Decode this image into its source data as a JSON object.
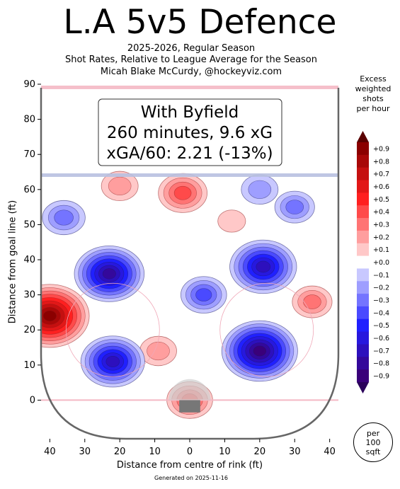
{
  "header": {
    "title": "L.A 5v5 Defence",
    "subtitle_lines": [
      "2025-2026, Regular Season",
      "Shot Rates, Relative to League Average for the Season",
      "Micah Blake McCurdy, @hockeyviz.com"
    ]
  },
  "annotation_box": {
    "lines": [
      "With Byfield",
      "260 minutes, 9.6 xG",
      "xGA/60: 2.21 (-13%)"
    ]
  },
  "legend": {
    "title_lines": [
      "Excess",
      "weighted",
      "shots",
      "per hour"
    ],
    "unit_lines": [
      "per",
      "100",
      "sqft"
    ]
  },
  "footer": {
    "generated": "Generated on 2025-11-16"
  },
  "colors": {
    "positive_max": "#8b0000",
    "positive_mid": "#ff2020",
    "positive_min": "#ffc8c8",
    "neutral": "#ffffff",
    "negative_min": "#c8c8ff",
    "negative_mid": "#2020ff",
    "negative_max": "#3a007a",
    "rink_border": "#666666",
    "goal_line": "#f4b8c4",
    "blue_line": "#b8c0e0"
  },
  "chart_data": {
    "type": "heatmap",
    "xlabel": "Distance from centre of rink (ft)",
    "ylabel": "Distance from goal line (ft)",
    "xlim": [
      -42.5,
      42.5
    ],
    "ylim": [
      -11,
      90
    ],
    "x_ticks": [
      40,
      30,
      20,
      10,
      0,
      10,
      20,
      30,
      40
    ],
    "x_tick_values": [
      -40,
      -30,
      -20,
      -10,
      0,
      10,
      20,
      30,
      40
    ],
    "y_ticks": [
      0,
      10,
      20,
      30,
      40,
      50,
      60,
      70,
      80,
      90
    ],
    "blue_line_y": 64,
    "goal_line_y": 0,
    "colorbar": {
      "labels": [
        "+0.9",
        "+0.8",
        "+0.7",
        "+0.6",
        "+0.5",
        "+0.4",
        "+0.3",
        "+0.2",
        "+0.1",
        "+0.0",
        "−0.1",
        "−0.2",
        "−0.3",
        "−0.4",
        "−0.5",
        "−0.6",
        "−0.7",
        "−0.8",
        "−0.9"
      ],
      "values": [
        0.9,
        0.8,
        0.7,
        0.6,
        0.5,
        0.4,
        0.3,
        0.2,
        0.1,
        0.0,
        -0.1,
        -0.2,
        -0.3,
        -0.4,
        -0.5,
        -0.6,
        -0.7,
        -0.8,
        -0.9
      ]
    },
    "hotspots": [
      {
        "x": -40,
        "y": 24,
        "value": 0.9
      },
      {
        "x": -2,
        "y": 59,
        "value": 0.4
      },
      {
        "x": -20,
        "y": 61,
        "value": 0.2
      },
      {
        "x": 0,
        "y": 0,
        "value": 0.35
      },
      {
        "x": -9,
        "y": 14,
        "value": 0.2
      },
      {
        "x": 35,
        "y": 28,
        "value": 0.25
      },
      {
        "x": 12,
        "y": 51,
        "value": 0.05
      },
      {
        "x": -23,
        "y": 36,
        "value": -0.75
      },
      {
        "x": 21,
        "y": 38,
        "value": -0.7
      },
      {
        "x": -22,
        "y": 11,
        "value": -0.65
      },
      {
        "x": 20,
        "y": 14,
        "value": -0.85
      },
      {
        "x": -36,
        "y": 52,
        "value": -0.3
      },
      {
        "x": 30,
        "y": 55,
        "value": -0.25
      },
      {
        "x": 4,
        "y": 30,
        "value": -0.35
      },
      {
        "x": 20,
        "y": 60,
        "value": -0.2
      }
    ]
  }
}
